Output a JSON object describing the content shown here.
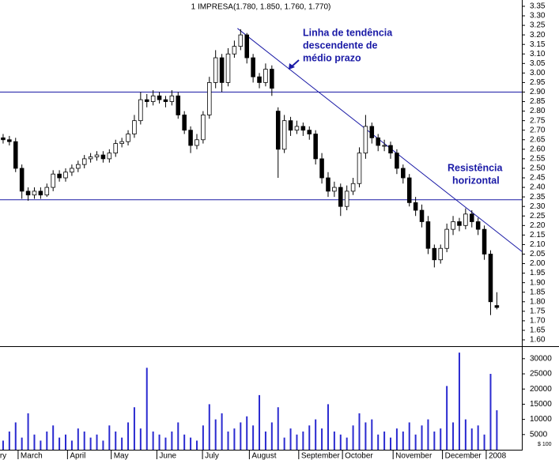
{
  "chart_data": {
    "type": "candlestick",
    "title": "1 IMPRESA(1.780, 1.850, 1.760, 1.770)",
    "categories": [
      null,
      null,
      null,
      null,
      null,
      null,
      null,
      null,
      null,
      null,
      null,
      null,
      null,
      null,
      null,
      null,
      null,
      null,
      null,
      null,
      null,
      null,
      null,
      null,
      null,
      null,
      null,
      null,
      null,
      null,
      null,
      null,
      null,
      null,
      null,
      null,
      null,
      null,
      null,
      null,
      null,
      null,
      null,
      null,
      null,
      null,
      null,
      null,
      null,
      null,
      null,
      null,
      null,
      null,
      null,
      null,
      null,
      null,
      null,
      null,
      null,
      null,
      null,
      null,
      null,
      null,
      null,
      null,
      null,
      null,
      null,
      null,
      null,
      null,
      null,
      null,
      null,
      null,
      null,
      null
    ],
    "open": [
      2.66,
      2.65,
      2.64,
      2.5,
      2.38,
      2.36,
      2.38,
      2.36,
      2.4,
      2.47,
      2.45,
      2.48,
      2.5,
      2.52,
      2.55,
      2.56,
      2.57,
      2.55,
      2.58,
      2.63,
      2.64,
      2.68,
      2.75,
      2.86,
      2.85,
      2.88,
      2.86,
      2.85,
      2.88,
      2.78,
      2.7,
      2.62,
      2.65,
      2.78,
      2.95,
      3.08,
      2.95,
      3.1,
      3.14,
      3.2,
      3.08,
      2.98,
      2.95,
      3.02,
      2.8,
      2.6,
      2.75,
      2.7,
      2.72,
      2.7,
      2.68,
      2.55,
      2.45,
      2.38,
      2.4,
      2.3,
      2.38,
      2.42,
      2.58,
      2.72,
      2.66,
      2.62,
      2.62,
      2.58,
      2.5,
      2.45,
      2.32,
      2.28,
      2.22,
      2.08,
      2.02,
      2.08,
      2.18,
      2.22,
      2.2,
      2.26,
      2.22,
      2.18,
      2.05,
      1.78
    ],
    "high": [
      2.68,
      2.67,
      2.66,
      2.52,
      2.4,
      2.4,
      2.4,
      2.42,
      2.49,
      2.49,
      2.5,
      2.52,
      2.54,
      2.57,
      2.58,
      2.59,
      2.59,
      2.6,
      2.65,
      2.66,
      2.7,
      2.78,
      2.9,
      2.89,
      2.91,
      2.9,
      2.88,
      2.91,
      2.9,
      2.8,
      2.72,
      2.68,
      2.8,
      2.98,
      3.12,
      3.1,
      3.13,
      3.17,
      3.23,
      3.21,
      3.1,
      3.0,
      3.05,
      3.04,
      2.82,
      2.78,
      2.77,
      2.75,
      2.74,
      2.72,
      2.7,
      2.58,
      2.48,
      2.43,
      2.42,
      2.41,
      2.45,
      2.61,
      2.78,
      2.74,
      2.68,
      2.65,
      2.64,
      2.6,
      2.52,
      2.47,
      2.35,
      2.31,
      2.25,
      2.1,
      2.1,
      2.21,
      2.25,
      2.24,
      2.29,
      2.28,
      2.24,
      2.2,
      2.07,
      1.85
    ],
    "low": [
      2.63,
      2.62,
      2.48,
      2.34,
      2.33,
      2.34,
      2.34,
      2.35,
      2.38,
      2.43,
      2.43,
      2.46,
      2.48,
      2.5,
      2.53,
      2.54,
      2.53,
      2.53,
      2.56,
      2.61,
      2.62,
      2.66,
      2.73,
      2.82,
      2.83,
      2.84,
      2.82,
      2.83,
      2.76,
      2.68,
      2.58,
      2.6,
      2.63,
      2.76,
      2.92,
      2.9,
      2.93,
      3.08,
      3.12,
      3.05,
      2.95,
      2.92,
      2.93,
      2.88,
      2.45,
      2.58,
      2.67,
      2.68,
      2.67,
      2.65,
      2.52,
      2.42,
      2.35,
      2.35,
      2.25,
      2.28,
      2.36,
      2.4,
      2.55,
      2.63,
      2.59,
      2.59,
      2.55,
      2.47,
      2.42,
      2.3,
      2.25,
      2.19,
      2.05,
      1.98,
      2.0,
      2.06,
      2.15,
      2.17,
      2.18,
      2.19,
      2.15,
      2.02,
      1.73,
      1.76
    ],
    "close": [
      2.65,
      2.64,
      2.5,
      2.38,
      2.36,
      2.38,
      2.36,
      2.4,
      2.47,
      2.45,
      2.48,
      2.5,
      2.52,
      2.55,
      2.56,
      2.57,
      2.55,
      2.58,
      2.63,
      2.64,
      2.68,
      2.75,
      2.86,
      2.85,
      2.88,
      2.86,
      2.85,
      2.88,
      2.78,
      2.7,
      2.62,
      2.65,
      2.78,
      2.95,
      3.08,
      2.95,
      3.1,
      3.14,
      3.2,
      3.08,
      2.98,
      2.95,
      3.02,
      2.92,
      2.6,
      2.75,
      2.7,
      2.72,
      2.7,
      2.68,
      2.55,
      2.45,
      2.38,
      2.4,
      2.3,
      2.38,
      2.42,
      2.58,
      2.72,
      2.66,
      2.62,
      2.62,
      2.58,
      2.5,
      2.45,
      2.32,
      2.28,
      2.22,
      2.08,
      2.02,
      2.08,
      2.18,
      2.22,
      2.2,
      2.26,
      2.22,
      2.18,
      2.05,
      1.8,
      1.77
    ],
    "up_color": "#ffffff",
    "down_color": "#000000",
    "xlim": [
      -0.5,
      83
    ],
    "xticks": [
      {
        "value": -0.9,
        "label": "ry"
      },
      {
        "value": 2.4,
        "label": "March"
      },
      {
        "value": 10.3,
        "label": "April"
      },
      {
        "value": 17.3,
        "label": "May"
      },
      {
        "value": 24.6,
        "label": "June"
      },
      {
        "value": 31.9,
        "label": "July"
      },
      {
        "value": 39.4,
        "label": "August"
      },
      {
        "value": 47.3,
        "label": "September"
      },
      {
        "value": 54.3,
        "label": "October"
      },
      {
        "value": 62.4,
        "label": "November"
      },
      {
        "value": 70.3,
        "label": "December"
      },
      {
        "value": 77.3,
        "label": "2008"
      }
    ],
    "ylim": [
      1.571,
      3.383
    ],
    "yticks": [
      3.35,
      {
        "value": 3.3,
        "label": "3.30"
      },
      3.25,
      {
        "value": 3.2,
        "label": "3.20"
      },
      3.15,
      {
        "value": 3.1,
        "label": "3.10"
      },
      3.05,
      {
        "value": 3,
        "label": "3.00"
      },
      2.95,
      {
        "value": 2.9,
        "label": "2.90"
      },
      2.85,
      {
        "value": 2.8,
        "label": "2.80"
      },
      2.75,
      {
        "value": 2.7,
        "label": "2.70"
      },
      2.65,
      {
        "value": 2.6,
        "label": "2.60"
      },
      2.55,
      {
        "value": 2.5,
        "label": "2.50"
      },
      2.45,
      {
        "value": 2.4,
        "label": "2.40"
      },
      2.35,
      {
        "value": 2.3,
        "label": "2.30"
      },
      2.25,
      {
        "value": 2.2,
        "label": "2.20"
      },
      2.15,
      {
        "value": 2.1,
        "label": "2.10"
      },
      2.05,
      {
        "value": 2,
        "label": "2.00"
      },
      1.95,
      {
        "value": 1.9,
        "label": "1.90"
      },
      1.85,
      {
        "value": 1.8,
        "label": "1.80"
      },
      1.75,
      {
        "value": 1.7,
        "label": "1.70"
      },
      1.65,
      {
        "value": 1.6,
        "label": "1.60"
      }
    ],
    "horizontal_lines": [
      2.9,
      2.335
    ],
    "line_color": "#1a1aa6",
    "trendline": {
      "x": [
        37.5,
        83
      ],
      "y": [
        3.234,
        2.064
      ]
    },
    "annotations": [
      [
        "Linha de tendência",
        "descendente de",
        "médio prazo"
      ],
      [
        "Resistência",
        "horizontal"
      ]
    ],
    "volume": {
      "values": [
        3000,
        6000,
        9000,
        4000,
        12000,
        5000,
        3000,
        6000,
        8000,
        4000,
        5000,
        3000,
        7000,
        6000,
        4000,
        5000,
        3000,
        8000,
        6000,
        4000,
        9000,
        14000,
        7000,
        27000,
        6000,
        5000,
        4000,
        6000,
        9000,
        5000,
        4000,
        3000,
        8000,
        15000,
        10000,
        12000,
        6000,
        7000,
        9000,
        11000,
        8000,
        18000,
        6000,
        9000,
        14000,
        4000,
        7000,
        5000,
        6000,
        8000,
        10000,
        7000,
        15000,
        6000,
        5000,
        4000,
        8000,
        12000,
        9000,
        10000,
        5000,
        6000,
        4000,
        7000,
        6000,
        9000,
        5000,
        8000,
        10000,
        6000,
        7000,
        21000,
        9000,
        32000,
        10000,
        7000,
        8000,
        5000,
        25000,
        13000
      ],
      "color": "#2a2ad0",
      "ylim": [
        0,
        33600
      ],
      "yticks": [
        5000,
        10000,
        15000,
        20000,
        25000,
        30000
      ],
      "unit_label": "$ 100"
    }
  }
}
